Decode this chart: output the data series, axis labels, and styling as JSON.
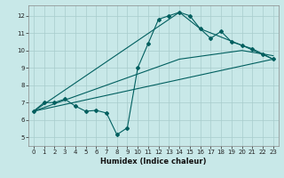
{
  "title": "",
  "xlabel": "Humidex (Indice chaleur)",
  "xlim": [
    -0.5,
    23.5
  ],
  "ylim": [
    4.5,
    12.6
  ],
  "xticks": [
    0,
    1,
    2,
    3,
    4,
    5,
    6,
    7,
    8,
    9,
    10,
    11,
    12,
    13,
    14,
    15,
    16,
    17,
    18,
    19,
    20,
    21,
    22,
    23
  ],
  "yticks": [
    5,
    6,
    7,
    8,
    9,
    10,
    11,
    12
  ],
  "bg_color": "#c8e8e8",
  "line_color": "#005f5f",
  "grid_color": "#a8cccc",
  "lines": [
    {
      "x": [
        0,
        1,
        2,
        3,
        4,
        5,
        6,
        7,
        8,
        9,
        10,
        11,
        12,
        13,
        14,
        15,
        16,
        17,
        18,
        19,
        20,
        21,
        22,
        23
      ],
      "y": [
        6.5,
        7.0,
        7.0,
        7.2,
        6.8,
        6.5,
        6.55,
        6.4,
        5.15,
        5.55,
        9.0,
        10.4,
        11.8,
        12.0,
        12.2,
        12.0,
        11.25,
        10.7,
        11.1,
        10.5,
        10.3,
        10.1,
        9.8,
        9.5
      ]
    },
    {
      "x": [
        0,
        14,
        16,
        20,
        23
      ],
      "y": [
        6.5,
        12.2,
        11.25,
        10.3,
        9.5
      ]
    },
    {
      "x": [
        0,
        14,
        20,
        23
      ],
      "y": [
        6.5,
        9.5,
        10.0,
        9.7
      ]
    },
    {
      "x": [
        0,
        23
      ],
      "y": [
        6.5,
        9.5
      ]
    }
  ]
}
